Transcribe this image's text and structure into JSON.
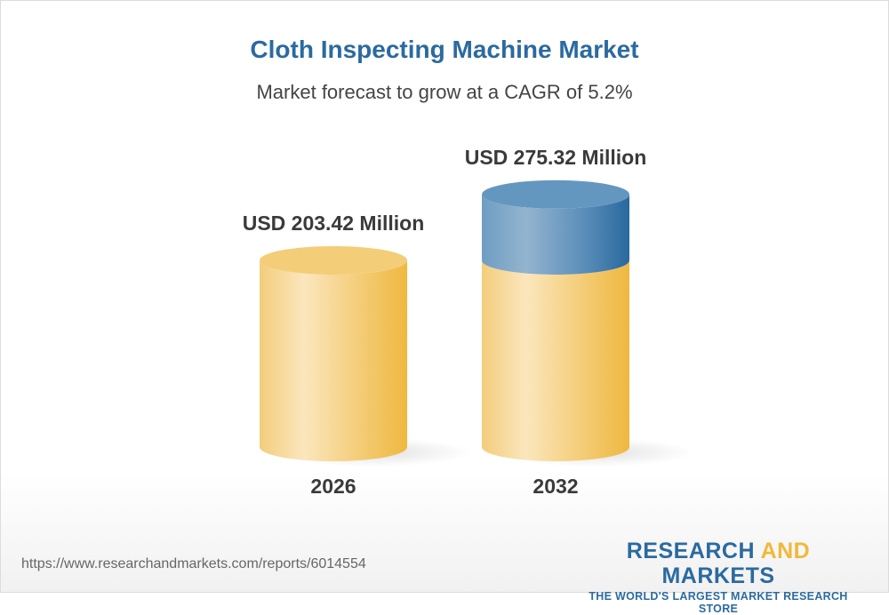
{
  "title": "Cloth Inspecting Machine Market",
  "subtitle": "Market forecast to grow at a CAGR of 5.2%",
  "chart_data": {
    "type": "bar",
    "style": "3d-cylinder",
    "categories": [
      "2026",
      "2032"
    ],
    "values": [
      203.42,
      275.32
    ],
    "data_labels": [
      "USD 203.42 Million",
      "USD 275.32 Million"
    ],
    "unit": "USD Million",
    "cagr_percent": 5.2,
    "colors": {
      "base": "#f0b93a",
      "growth": "#2b6aa0"
    }
  },
  "footer": {
    "url": "https://www.researchandmarkets.com/reports/6014554",
    "logo_part1": "RESEARCH ",
    "logo_part2": "AND",
    "logo_part3": " MARKETS",
    "tagline": "THE WORLD'S LARGEST MARKET RESEARCH STORE"
  }
}
